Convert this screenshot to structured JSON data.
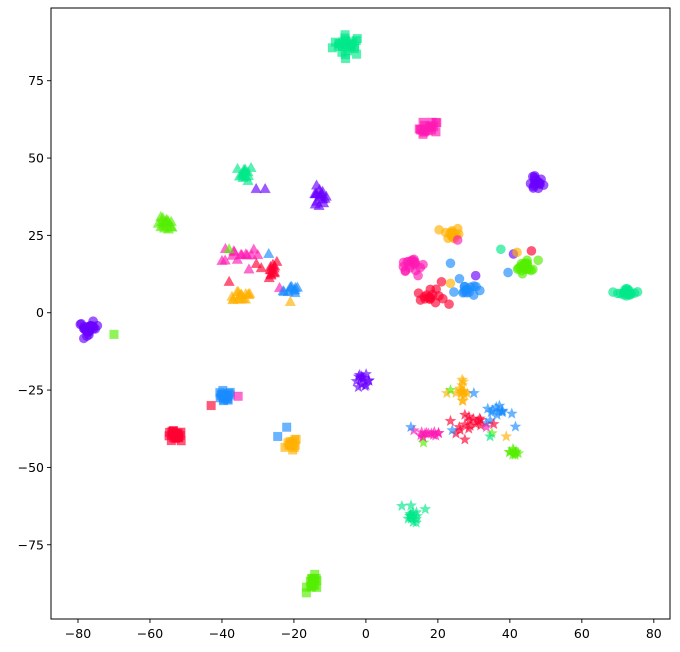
{
  "chart_data": {
    "type": "scatter",
    "title": "",
    "xlabel": "",
    "ylabel": "",
    "xlim": [
      -87.5,
      84.5
    ],
    "ylim": [
      -99,
      98.5
    ],
    "xticks": [
      -80,
      -60,
      -40,
      -20,
      0,
      20,
      40,
      60,
      80
    ],
    "yticks": [
      -75,
      -50,
      -25,
      0,
      25,
      50,
      75
    ],
    "grid": false,
    "legend": "none",
    "marker_alpha": 0.65,
    "palette": {
      "purple": "#6a00ff",
      "green": "#55ee00",
      "teal": "#00e88a",
      "pink": "#ff1ab3",
      "red": "#ff0033",
      "orange": "#ffb000",
      "blue": "#1a8cff"
    },
    "clusters": [
      {
        "color": "teal",
        "marker": "square",
        "center": [
          -5,
          86.5
        ],
        "spread": [
          2.8,
          2.2
        ],
        "count": 26
      },
      {
        "color": "pink",
        "marker": "square",
        "center": [
          17.5,
          59.5
        ],
        "spread": [
          1.8,
          1.8
        ],
        "count": 18
      },
      {
        "color": "teal",
        "marker": "triangle",
        "center": [
          -33.5,
          45
        ],
        "spread": [
          1.4,
          1.6
        ],
        "count": 14
      },
      {
        "color": "purple",
        "marker": "triangle",
        "center": [
          -13,
          37
        ],
        "spread": [
          1.5,
          2.2
        ],
        "count": 16
      },
      {
        "color": "purple",
        "marker": "circle",
        "center": [
          47,
          42
        ],
        "spread": [
          1.5,
          1.8
        ],
        "count": 16
      },
      {
        "color": "green",
        "marker": "triangle",
        "center": [
          -55.5,
          28.5
        ],
        "spread": [
          1.7,
          1.5
        ],
        "count": 16
      },
      {
        "color": "pink",
        "marker": "triangle",
        "center": [
          -35,
          19
        ],
        "spread": [
          3.5,
          2.0
        ],
        "count": 14
      },
      {
        "color": "red",
        "marker": "triangle",
        "center": [
          -27,
          14
        ],
        "spread": [
          2.0,
          2.2
        ],
        "count": 14
      },
      {
        "color": "orange",
        "marker": "triangle",
        "center": [
          -35,
          5.5
        ],
        "spread": [
          2.8,
          1.5
        ],
        "count": 16
      },
      {
        "color": "blue",
        "marker": "triangle",
        "center": [
          -19.5,
          7.5
        ],
        "spread": [
          2.0,
          1.2
        ],
        "count": 10
      },
      {
        "color": "orange",
        "marker": "circle",
        "center": [
          24,
          25.5
        ],
        "spread": [
          1.4,
          1.5
        ],
        "count": 16
      },
      {
        "color": "pink",
        "marker": "circle",
        "center": [
          12.5,
          16
        ],
        "spread": [
          2.0,
          1.5
        ],
        "count": 18
      },
      {
        "color": "red",
        "marker": "circle",
        "center": [
          18,
          5
        ],
        "spread": [
          2.5,
          1.5
        ],
        "count": 16
      },
      {
        "color": "blue",
        "marker": "circle",
        "center": [
          27.5,
          7.5
        ],
        "spread": [
          2.0,
          1.5
        ],
        "count": 14
      },
      {
        "color": "green",
        "marker": "circle",
        "center": [
          44.5,
          15
        ],
        "spread": [
          2.2,
          1.5
        ],
        "count": 20
      },
      {
        "color": "teal",
        "marker": "circle",
        "center": [
          73,
          6.5
        ],
        "spread": [
          2.0,
          1.0
        ],
        "count": 16
      },
      {
        "color": "purple",
        "marker": "circle",
        "center": [
          -77,
          -5
        ],
        "spread": [
          1.8,
          1.3
        ],
        "count": 26
      },
      {
        "color": "purple",
        "marker": "star",
        "center": [
          -1,
          -22
        ],
        "spread": [
          1.5,
          1.3
        ],
        "count": 14
      },
      {
        "color": "orange",
        "marker": "star",
        "center": [
          26.5,
          -25.5
        ],
        "spread": [
          1.2,
          2.2
        ],
        "count": 14
      },
      {
        "color": "blue",
        "marker": "star",
        "center": [
          36.5,
          -33
        ],
        "spread": [
          3.0,
          2.0
        ],
        "count": 14
      },
      {
        "color": "red",
        "marker": "star",
        "center": [
          29.5,
          -36
        ],
        "spread": [
          3.0,
          2.2
        ],
        "count": 14
      },
      {
        "color": "pink",
        "marker": "star",
        "center": [
          17,
          -39
        ],
        "spread": [
          3.5,
          1.5
        ],
        "count": 14
      },
      {
        "color": "green",
        "marker": "star",
        "center": [
          41.5,
          -45
        ],
        "spread": [
          1.0,
          1.2
        ],
        "count": 10
      },
      {
        "color": "teal",
        "marker": "star",
        "center": [
          13,
          -66
        ],
        "spread": [
          1.4,
          1.5
        ],
        "count": 14
      },
      {
        "color": "blue",
        "marker": "square",
        "center": [
          -39.5,
          -27.5
        ],
        "spread": [
          1.5,
          1.5
        ],
        "count": 18
      },
      {
        "color": "red",
        "marker": "square",
        "center": [
          -53,
          -40
        ],
        "spread": [
          1.5,
          1.2
        ],
        "count": 20
      },
      {
        "color": "orange",
        "marker": "square",
        "center": [
          -20.5,
          -42.5
        ],
        "spread": [
          1.0,
          1.5
        ],
        "count": 14
      },
      {
        "color": "green",
        "marker": "square",
        "center": [
          -14.5,
          -87.5
        ],
        "spread": [
          1.2,
          1.6
        ],
        "count": 18
      }
    ],
    "points": [
      {
        "color": "green",
        "marker": "square",
        "x": -70,
        "y": -7
      },
      {
        "color": "purple",
        "marker": "triangle",
        "x": -30.5,
        "y": 40
      },
      {
        "color": "purple",
        "marker": "triangle",
        "x": -28,
        "y": 40
      },
      {
        "color": "green",
        "marker": "triangle",
        "x": -38,
        "y": 20.5
      },
      {
        "color": "blue",
        "marker": "triangle",
        "x": -27,
        "y": 19
      },
      {
        "color": "pink",
        "marker": "triangle",
        "x": -32.5,
        "y": 14
      },
      {
        "color": "pink",
        "marker": "triangle",
        "x": -24,
        "y": 8
      },
      {
        "color": "red",
        "marker": "triangle",
        "x": -38,
        "y": 10
      },
      {
        "color": "blue",
        "marker": "triangle",
        "x": -23,
        "y": 7
      },
      {
        "color": "orange",
        "marker": "triangle",
        "x": -21,
        "y": 3.5
      },
      {
        "color": "teal",
        "marker": "circle",
        "x": 37.5,
        "y": 20.5
      },
      {
        "color": "purple",
        "marker": "circle",
        "x": 41,
        "y": 19
      },
      {
        "color": "orange",
        "marker": "circle",
        "x": 42,
        "y": 19.5
      },
      {
        "color": "red",
        "marker": "circle",
        "x": 46,
        "y": 20
      },
      {
        "color": "purple",
        "marker": "circle",
        "x": 30.5,
        "y": 12
      },
      {
        "color": "blue",
        "marker": "circle",
        "x": 39.5,
        "y": 13
      },
      {
        "color": "blue",
        "marker": "circle",
        "x": 23.5,
        "y": 16
      },
      {
        "color": "pink",
        "marker": "circle",
        "x": 25.5,
        "y": 23.5
      },
      {
        "color": "pink",
        "marker": "circle",
        "x": 14.5,
        "y": 12
      },
      {
        "color": "red",
        "marker": "circle",
        "x": 21,
        "y": 10
      },
      {
        "color": "orange",
        "marker": "circle",
        "x": 23.5,
        "y": 9.5
      },
      {
        "color": "blue",
        "marker": "circle",
        "x": 26,
        "y": 11
      },
      {
        "color": "blue",
        "marker": "square",
        "x": -22,
        "y": -37
      },
      {
        "color": "blue",
        "marker": "square",
        "x": -24.5,
        "y": -40
      },
      {
        "color": "red",
        "marker": "square",
        "x": -43,
        "y": -30
      },
      {
        "color": "pink",
        "marker": "square",
        "x": -35.5,
        "y": -27
      },
      {
        "color": "orange",
        "marker": "star",
        "x": 22.5,
        "y": -26
      },
      {
        "color": "green",
        "marker": "star",
        "x": 23.5,
        "y": -25
      },
      {
        "color": "blue",
        "marker": "star",
        "x": 30,
        "y": -26
      },
      {
        "color": "blue",
        "marker": "star",
        "x": 12.5,
        "y": -37
      },
      {
        "color": "blue",
        "marker": "star",
        "x": 24,
        "y": -38
      },
      {
        "color": "red",
        "marker": "star",
        "x": 23.5,
        "y": -35
      },
      {
        "color": "red",
        "marker": "star",
        "x": 27.5,
        "y": -33
      },
      {
        "color": "red",
        "marker": "star",
        "x": 35.5,
        "y": -36
      },
      {
        "color": "red",
        "marker": "star",
        "x": 27.5,
        "y": -41
      },
      {
        "color": "pink",
        "marker": "star",
        "x": 33.5,
        "y": -37
      },
      {
        "color": "green",
        "marker": "star",
        "x": 16,
        "y": -42
      },
      {
        "color": "green",
        "marker": "star",
        "x": 35,
        "y": -39
      },
      {
        "color": "teal",
        "marker": "star",
        "x": 34.5,
        "y": -40
      },
      {
        "color": "orange",
        "marker": "star",
        "x": 39,
        "y": -40
      },
      {
        "color": "teal",
        "marker": "star",
        "x": 10,
        "y": -62.5
      },
      {
        "color": "teal",
        "marker": "star",
        "x": 16.5,
        "y": -63.5
      }
    ]
  }
}
